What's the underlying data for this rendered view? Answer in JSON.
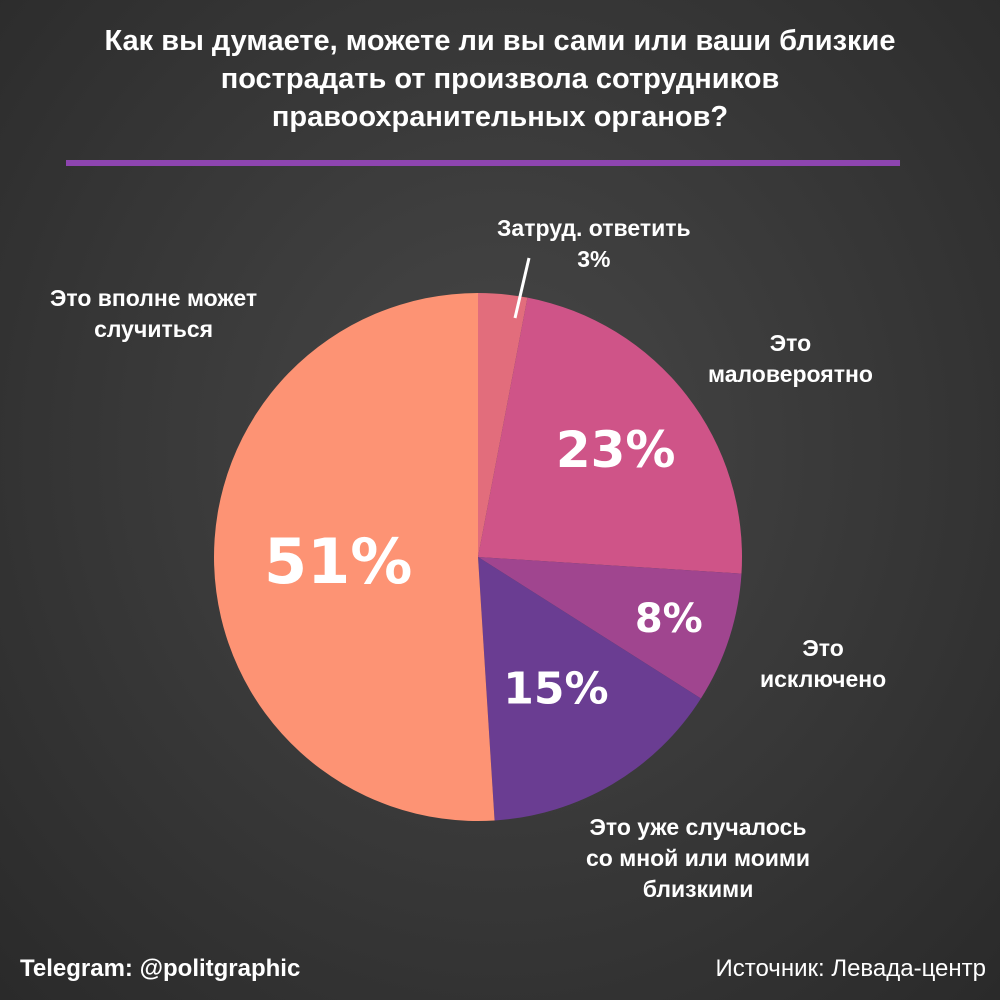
{
  "header": {
    "title_line1": "Как вы думаете, можете ли вы сами или ваши близкие",
    "title_line2": "пострадать от произвола сотрудников",
    "title_line3": "правоохранительных органов?"
  },
  "chart_data": {
    "type": "pie",
    "title": "Как вы думаете, можете ли вы сами или ваши близкие пострадать от произвола сотрудников правоохранительных органов?",
    "slices": [
      {
        "label": "Затруд. ответить",
        "value": 3,
        "value_label": "3%",
        "color": "#e26d7c"
      },
      {
        "label": "Это маловероятно",
        "value": 23,
        "value_label": "23%",
        "color": "#cf5488"
      },
      {
        "label": "Это исключено",
        "value": 8,
        "value_label": "8%",
        "color": "#a0458f"
      },
      {
        "label": "Это уже случалось со мной или моими близкими",
        "value": 15,
        "value_label": "15%",
        "color": "#6a3d92"
      },
      {
        "label": "Это вполне может случиться",
        "value": 51,
        "value_label": "51%",
        "color": "#fd9374"
      }
    ]
  },
  "labels": {
    "hard_to_say": {
      "line1": "Затруд. ответить",
      "line2": "3%"
    },
    "unlikely": {
      "line1": "Это",
      "line2": "маловероятно"
    },
    "excluded": {
      "line1": "Это",
      "line2": "исключено"
    },
    "happened": {
      "line1": "Это уже случалось",
      "line2": "со мной или моими",
      "line3": "близкими"
    },
    "may_happen": {
      "line1": "Это вполне может",
      "line2": "случиться"
    }
  },
  "footer": {
    "telegram": "Telegram: @politgraphic",
    "source_prefix": "Источник:",
    "source_name": "Левада-центр"
  },
  "colors": {
    "accent_line": "#8e45b0",
    "background": "#3a3a3a"
  }
}
